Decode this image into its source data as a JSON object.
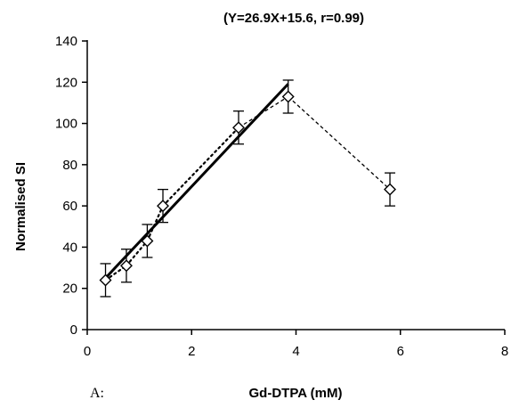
{
  "panel_label": "A:",
  "chart_data": {
    "type": "scatter",
    "title": "(Y=26.9X+15.6, r=0.99)",
    "xlabel": "Gd-DTPA (mM)",
    "ylabel": "Normalised SI",
    "xlim": [
      0,
      8
    ],
    "ylim": [
      0,
      140
    ],
    "x_ticks": [
      0,
      2,
      4,
      6,
      8
    ],
    "y_ticks": [
      0,
      20,
      40,
      60,
      80,
      100,
      120,
      140
    ],
    "grid": false,
    "series": [
      {
        "marker": "diamond",
        "connector": "dotted",
        "x": [
          0.35,
          0.75,
          1.15,
          1.45,
          2.9,
          3.85,
          5.8
        ],
        "y": [
          24,
          31,
          43,
          60,
          98,
          113,
          68
        ],
        "error": [
          8,
          8,
          8,
          8,
          8,
          8,
          8
        ]
      }
    ],
    "fit_line": {
      "slope": 26.9,
      "intercept": 15.6,
      "x_range": [
        0.35,
        3.85
      ]
    }
  }
}
